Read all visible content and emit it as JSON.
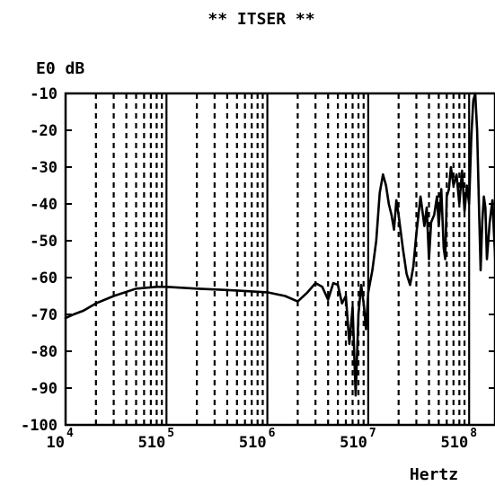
{
  "chart_data": {
    "type": "line",
    "title": "** ITSER **",
    "ylabel": "E0 dB",
    "xlabel": "Hertz",
    "x_scale": "log",
    "xlim": [
      10000,
      200000000
    ],
    "ylim": [
      -100,
      -10
    ],
    "grid": true,
    "y_ticks": [
      -10,
      -20,
      -30,
      -40,
      -50,
      -60,
      -70,
      -80,
      -90,
      -100
    ],
    "y_tick_labels": [
      "-10",
      "-20",
      "-30",
      "-40",
      "-50",
      "-60",
      "-70",
      "-80",
      "-90",
      "-100"
    ],
    "x_tick_labels": [
      {
        "value": 10000,
        "base": "10",
        "exp": "4"
      },
      {
        "value": 100000,
        "base": "510",
        "exp": "5"
      },
      {
        "value": 1000000,
        "base": "510",
        "exp": "6"
      },
      {
        "value": 10000000,
        "base": "510",
        "exp": "7"
      },
      {
        "value": 100000000,
        "base": "510",
        "exp": "8"
      }
    ],
    "series": [
      {
        "values": [
          [
            10000,
            -71
          ],
          [
            12000,
            -70
          ],
          [
            15000,
            -69
          ],
          [
            20000,
            -67
          ],
          [
            30000,
            -65
          ],
          [
            50000,
            -63
          ],
          [
            80000,
            -62.5
          ],
          [
            100000,
            -62.5
          ],
          [
            200000,
            -63
          ],
          [
            500000,
            -63.5
          ],
          [
            1000000,
            -64
          ],
          [
            1500000,
            -65
          ],
          [
            2000000,
            -66.5
          ],
          [
            2500000,
            -64
          ],
          [
            3000000,
            -61.5
          ],
          [
            3500000,
            -62.5
          ],
          [
            4000000,
            -66
          ],
          [
            4500000,
            -61.5
          ],
          [
            5000000,
            -62
          ],
          [
            5500000,
            -67
          ],
          [
            6000000,
            -65
          ],
          [
            6500000,
            -78
          ],
          [
            7000000,
            -68
          ],
          [
            7500000,
            -92
          ],
          [
            8000000,
            -70
          ],
          [
            8500000,
            -62
          ],
          [
            9000000,
            -67
          ],
          [
            9500000,
            -74
          ],
          [
            10000000,
            -64
          ],
          [
            11000000,
            -58
          ],
          [
            12000000,
            -50
          ],
          [
            13000000,
            -37
          ],
          [
            14000000,
            -32
          ],
          [
            15000000,
            -35
          ],
          [
            16000000,
            -40
          ],
          [
            17000000,
            -43
          ],
          [
            18000000,
            -47
          ],
          [
            19000000,
            -39
          ],
          [
            20000000,
            -43
          ],
          [
            22000000,
            -52
          ],
          [
            24000000,
            -59
          ],
          [
            26000000,
            -62
          ],
          [
            28000000,
            -57
          ],
          [
            30000000,
            -48
          ],
          [
            33000000,
            -38
          ],
          [
            36000000,
            -46
          ],
          [
            38000000,
            -41
          ],
          [
            40000000,
            -55
          ],
          [
            42000000,
            -45
          ],
          [
            45000000,
            -43
          ],
          [
            48000000,
            -38
          ],
          [
            50000000,
            -46
          ],
          [
            53000000,
            -36
          ],
          [
            56000000,
            -52
          ],
          [
            58000000,
            -55
          ],
          [
            60000000,
            -38
          ],
          [
            63000000,
            -36
          ],
          [
            66000000,
            -30
          ],
          [
            70000000,
            -35
          ],
          [
            75000000,
            -32
          ],
          [
            80000000,
            -40
          ],
          [
            85000000,
            -31
          ],
          [
            90000000,
            -42
          ],
          [
            95000000,
            -35
          ],
          [
            100000000,
            -40
          ],
          [
            105000000,
            -22
          ],
          [
            110000000,
            -12
          ],
          [
            115000000,
            -10
          ],
          [
            120000000,
            -20
          ],
          [
            125000000,
            -40
          ],
          [
            130000000,
            -58
          ],
          [
            135000000,
            -45
          ],
          [
            140000000,
            -38
          ],
          [
            145000000,
            -41
          ],
          [
            150000000,
            -55
          ],
          [
            160000000,
            -45
          ],
          [
            170000000,
            -39
          ],
          [
            185000000,
            -60
          ],
          [
            200000000,
            -60
          ]
        ]
      }
    ]
  }
}
